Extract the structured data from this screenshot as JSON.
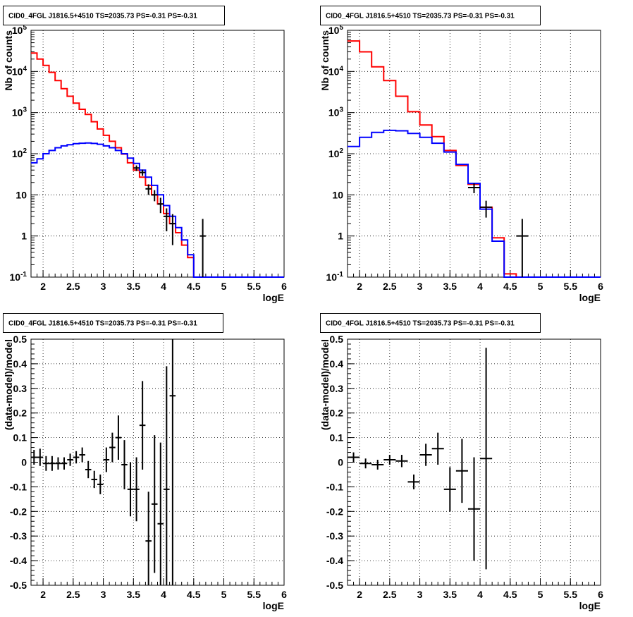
{
  "chart_data": [
    {
      "type": "line",
      "title": "CID0_4FGL J1816.5+4510 TS=2035.73 PS=-0.31 PS=-0.31",
      "xlabel": "logE",
      "ylabel": "Nb of counts",
      "xlim": [
        1.8,
        6.0
      ],
      "ylim": [
        0.1,
        100000
      ],
      "yscale": "log",
      "grid": true,
      "x_ticks": [
        "2",
        "2.5",
        "3",
        "3.5",
        "4",
        "4.5",
        "5",
        "5.5",
        "6"
      ],
      "y_ticks": [
        "10^-1",
        "1",
        "10",
        "10^2",
        "10^3",
        "10^4",
        "10^5"
      ],
      "bin_edges": [
        1.8,
        1.9,
        2.0,
        2.1,
        2.2,
        2.3,
        2.4,
        2.5,
        2.6,
        2.7,
        2.8,
        2.9,
        3.0,
        3.1,
        3.2,
        3.3,
        3.4,
        3.5,
        3.6,
        3.7,
        3.8,
        3.9,
        4.0,
        4.1,
        4.2,
        4.3,
        4.4,
        4.5,
        4.6,
        4.7,
        4.8,
        4.9,
        5.0,
        5.1,
        5.2,
        5.3,
        5.4,
        5.5,
        5.6,
        5.7,
        5.8,
        5.9,
        6.0
      ],
      "series": [
        {
          "color": "#ff0000",
          "values": [
            28000,
            20000,
            14000,
            9500,
            6000,
            3800,
            2500,
            1700,
            1200,
            900,
            600,
            400,
            280,
            200,
            140,
            98,
            60,
            40,
            27,
            17,
            10,
            6,
            3.5,
            2,
            1.2,
            0.6,
            0.3,
            0.1,
            0.1,
            0.1,
            0.1,
            0.1,
            0.1,
            0.1,
            0.1,
            0.1,
            0.1,
            0.1,
            0.1,
            0.1,
            0.1,
            0.1
          ]
        },
        {
          "color": "#0000ff",
          "values": [
            60,
            75,
            100,
            120,
            140,
            155,
            165,
            175,
            180,
            182,
            178,
            170,
            155,
            140,
            120,
            100,
            78,
            58,
            40,
            27,
            17,
            10,
            5.5,
            3,
            1.6,
            0.8,
            0.35,
            0.1,
            0.1,
            0.1,
            0.1,
            0.1,
            0.1,
            0.1,
            0.1,
            0.1,
            0.1,
            0.1,
            0.1,
            0.1,
            0.1,
            0.1
          ]
        }
      ],
      "points": [
        {
          "x": 3.55,
          "y": 45,
          "ylo": 38,
          "yhi": 52
        },
        {
          "x": 3.65,
          "y": 35,
          "ylo": 29,
          "yhi": 41
        },
        {
          "x": 3.75,
          "y": 14,
          "ylo": 10,
          "yhi": 18
        },
        {
          "x": 3.85,
          "y": 10,
          "ylo": 7,
          "yhi": 13
        },
        {
          "x": 3.95,
          "y": 6,
          "ylo": 3.6,
          "yhi": 8.5
        },
        {
          "x": 4.05,
          "y": 3,
          "ylo": 1.3,
          "yhi": 4.7
        },
        {
          "x": 4.15,
          "y": 2,
          "ylo": 0.6,
          "yhi": 3.4
        },
        {
          "x": 4.65,
          "y": 1,
          "ylo": 0.1,
          "yhi": 2.6
        }
      ]
    },
    {
      "type": "line",
      "title": "CID0_4FGL J1816.5+4510 TS=2035.73 PS=-0.31 PS=-0.31",
      "xlabel": "logE",
      "ylabel": "Nb of counts",
      "xlim": [
        1.8,
        6.0
      ],
      "ylim": [
        0.1,
        100000
      ],
      "yscale": "log",
      "grid": true,
      "x_ticks": [
        "2",
        "2.5",
        "3",
        "3.5",
        "4",
        "4.5",
        "5",
        "5.5",
        "6"
      ],
      "y_ticks": [
        "10^-1",
        "1",
        "10",
        "10^2",
        "10^3",
        "10^4",
        "10^5"
      ],
      "bin_edges": [
        1.8,
        2.0,
        2.2,
        2.4,
        2.6,
        2.8,
        3.0,
        3.2,
        3.4,
        3.6,
        3.8,
        4.0,
        4.2,
        4.4,
        4.6,
        4.8,
        5.0,
        5.2,
        5.4,
        5.6,
        5.8,
        6.0
      ],
      "series": [
        {
          "color": "#ff0000",
          "values": [
            55000,
            30000,
            13000,
            6000,
            2500,
            1050,
            500,
            260,
            120,
            52,
            18,
            5,
            0.9,
            0.12,
            0.1,
            0.1,
            0.1,
            0.1,
            0.1,
            0.1,
            0.1
          ]
        },
        {
          "color": "#0000ff",
          "values": [
            150,
            250,
            330,
            370,
            360,
            310,
            250,
            180,
            110,
            55,
            19,
            4.5,
            0.75,
            0.1,
            0.1,
            0.1,
            0.1,
            0.1,
            0.1,
            0.1,
            0.1
          ]
        }
      ],
      "points": [
        {
          "x": 3.9,
          "y": 15,
          "ylo": 11,
          "yhi": 19
        },
        {
          "x": 4.1,
          "y": 5,
          "ylo": 2.8,
          "yhi": 7.2
        },
        {
          "x": 4.7,
          "y": 1,
          "ylo": 0.1,
          "yhi": 2.6
        }
      ]
    },
    {
      "type": "scatter",
      "title": "CID0_4FGL J1816.5+4510 TS=2035.73 PS=-0.31 PS=-0.31",
      "xlabel": "logE",
      "ylabel": "(data-model)/model",
      "xlim": [
        1.8,
        6.0
      ],
      "ylim": [
        -0.5,
        0.5
      ],
      "grid": true,
      "x_ticks": [
        "2",
        "2.5",
        "3",
        "3.5",
        "4",
        "4.5",
        "5",
        "5.5",
        "6"
      ],
      "y_ticks": [
        "-0.5",
        "-0.4",
        "-0.3",
        "-0.2",
        "-0.1",
        "0",
        "0.1",
        "0.2",
        "0.3",
        "0.4",
        "0.5"
      ],
      "bin_width": 0.1,
      "points": [
        {
          "x": 1.85,
          "y": 0.02,
          "err": 0.03
        },
        {
          "x": 1.95,
          "y": 0.02,
          "err": 0.035
        },
        {
          "x": 2.05,
          "y": -0.005,
          "err": 0.03
        },
        {
          "x": 2.15,
          "y": -0.005,
          "err": 0.03
        },
        {
          "x": 2.25,
          "y": -0.005,
          "err": 0.025
        },
        {
          "x": 2.35,
          "y": -0.005,
          "err": 0.025
        },
        {
          "x": 2.45,
          "y": 0.01,
          "err": 0.025
        },
        {
          "x": 2.55,
          "y": 0.02,
          "err": 0.025
        },
        {
          "x": 2.65,
          "y": 0.03,
          "err": 0.03
        },
        {
          "x": 2.75,
          "y": -0.03,
          "err": 0.035
        },
        {
          "x": 2.85,
          "y": -0.07,
          "err": 0.035
        },
        {
          "x": 2.95,
          "y": -0.09,
          "err": 0.04
        },
        {
          "x": 3.05,
          "y": 0.01,
          "err": 0.05
        },
        {
          "x": 3.15,
          "y": 0.06,
          "err": 0.06
        },
        {
          "x": 3.25,
          "y": 0.1,
          "err": 0.09
        },
        {
          "x": 3.35,
          "y": -0.01,
          "err": 0.1
        },
        {
          "x": 3.45,
          "y": -0.11,
          "err": 0.11
        },
        {
          "x": 3.55,
          "y": -0.11,
          "err": 0.13
        },
        {
          "x": 3.65,
          "y": 0.15,
          "err": 0.18
        },
        {
          "x": 3.75,
          "y": -0.32,
          "err": 0.2
        },
        {
          "x": 3.85,
          "y": -0.17,
          "err": 0.28
        },
        {
          "x": 3.95,
          "y": -0.25,
          "err": 0.33
        },
        {
          "x": 4.05,
          "y": -0.11,
          "err": 0.5
        },
        {
          "x": 4.15,
          "y": 0.27,
          "err": 0.8
        }
      ]
    },
    {
      "type": "scatter",
      "title": "CID0_4FGL J1816.5+4510 TS=2035.73 PS=-0.31 PS=-0.31",
      "xlabel": "logE",
      "ylabel": "(data-model)/model",
      "xlim": [
        1.8,
        6.0
      ],
      "ylim": [
        -0.5,
        0.5
      ],
      "grid": true,
      "x_ticks": [
        "2",
        "2.5",
        "3",
        "3.5",
        "4",
        "4.5",
        "5",
        "5.5",
        "6"
      ],
      "y_ticks": [
        "-0.5",
        "-0.4",
        "-0.3",
        "-0.2",
        "-0.1",
        "0",
        "0.1",
        "0.2",
        "0.3",
        "0.4",
        "0.5"
      ],
      "bin_width": 0.2,
      "points": [
        {
          "x": 1.9,
          "y": 0.02,
          "err": 0.02
        },
        {
          "x": 2.1,
          "y": -0.005,
          "err": 0.02
        },
        {
          "x": 2.3,
          "y": -0.01,
          "err": 0.02
        },
        {
          "x": 2.5,
          "y": 0.01,
          "err": 0.02
        },
        {
          "x": 2.7,
          "y": 0.005,
          "err": 0.025
        },
        {
          "x": 2.9,
          "y": -0.08,
          "err": 0.03
        },
        {
          "x": 3.1,
          "y": 0.03,
          "err": 0.045
        },
        {
          "x": 3.3,
          "y": 0.055,
          "err": 0.065
        },
        {
          "x": 3.5,
          "y": -0.11,
          "err": 0.09
        },
        {
          "x": 3.7,
          "y": -0.035,
          "err": 0.13
        },
        {
          "x": 3.9,
          "y": -0.19,
          "err": 0.21
        },
        {
          "x": 4.1,
          "y": 0.015,
          "err": 0.45
        }
      ]
    }
  ]
}
